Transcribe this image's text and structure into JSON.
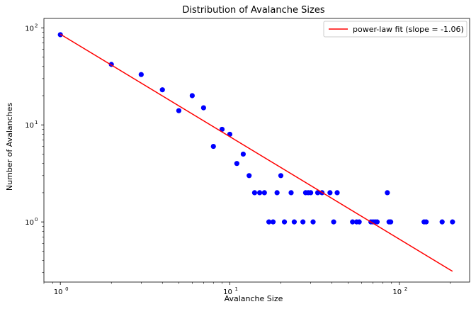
{
  "chart_data": {
    "type": "scatter",
    "title": "Distribution of Avalanche Sizes",
    "xlabel": "Avalanche Size",
    "ylabel": "Number of Avalanches",
    "xscale": "log",
    "yscale": "log",
    "xlim": [
      0.8,
      260
    ],
    "ylim": [
      0.24,
      125
    ],
    "x_ticks": [
      {
        "value": 1,
        "base": "10",
        "exp": "0"
      },
      {
        "value": 10,
        "base": "10",
        "exp": "1"
      },
      {
        "value": 100,
        "base": "10",
        "exp": "2"
      }
    ],
    "y_ticks": [
      {
        "value": 1,
        "base": "10",
        "exp": "0"
      },
      {
        "value": 10,
        "base": "10",
        "exp": "1"
      },
      {
        "value": 100,
        "base": "10",
        "exp": "2"
      }
    ],
    "grid": false,
    "legend_position": "top-right",
    "point_color": "#0000ff",
    "fit_color": "#ff0000",
    "series": [
      {
        "kind": "points",
        "points": [
          [
            1,
            85
          ],
          [
            2,
            42
          ],
          [
            3,
            33
          ],
          [
            4,
            23
          ],
          [
            5,
            14
          ],
          [
            6,
            20
          ],
          [
            7,
            15
          ],
          [
            8,
            6
          ],
          [
            9,
            9
          ],
          [
            10,
            8
          ],
          [
            11,
            4
          ],
          [
            12,
            5
          ],
          [
            13,
            3
          ],
          [
            14,
            2
          ],
          [
            15,
            2
          ],
          [
            16,
            2
          ],
          [
            17,
            1
          ],
          [
            18,
            1
          ],
          [
            19,
            2
          ],
          [
            20,
            3
          ],
          [
            21,
            1
          ],
          [
            23,
            2
          ],
          [
            24,
            1
          ],
          [
            27,
            1
          ],
          [
            28,
            2
          ],
          [
            29,
            2
          ],
          [
            30,
            2
          ],
          [
            31,
            1
          ],
          [
            33,
            2
          ],
          [
            35,
            2
          ],
          [
            39,
            2
          ],
          [
            41,
            1
          ],
          [
            43,
            2
          ],
          [
            53,
            1
          ],
          [
            56,
            1
          ],
          [
            58,
            1
          ],
          [
            68,
            1
          ],
          [
            70,
            1
          ],
          [
            72,
            1
          ],
          [
            74,
            1
          ],
          [
            85,
            2
          ],
          [
            87,
            1
          ],
          [
            89,
            1
          ],
          [
            140,
            1
          ],
          [
            144,
            1
          ],
          [
            179,
            1
          ],
          [
            206,
            1
          ]
        ]
      },
      {
        "kind": "line",
        "name": "power-law fit (slope = -1.06)",
        "x": [
          1,
          206
        ],
        "y": [
          86,
          0.31
        ]
      }
    ]
  }
}
